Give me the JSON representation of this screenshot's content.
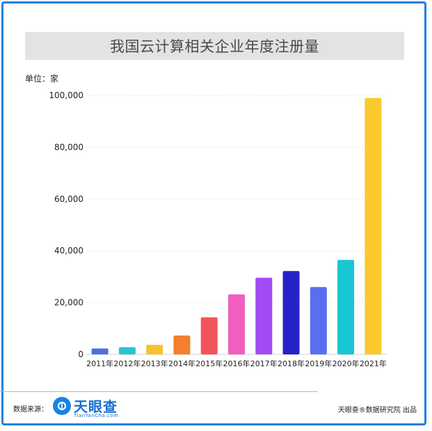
{
  "colors": {
    "frame": "#1a82e0",
    "title_bg": "#e3e3e3",
    "bars": [
      "#4c6fe0",
      "#29c3d6",
      "#f7c22e",
      "#f2802c",
      "#f2545b",
      "#f05fc0",
      "#a04cf2",
      "#2622c8",
      "#5a6ef0",
      "#18c6d1",
      "#fbc92e"
    ]
  },
  "unit_label": "单位：家",
  "footer": {
    "source_label": "数据来源：",
    "logo_name": "天眼查",
    "logo_sub": "TianYanCha.com",
    "credit": "天眼查®数据研究院 出品"
  },
  "chart_data": {
    "type": "bar",
    "title": "我国云计算相关企业年度注册量",
    "categories": [
      "2011年",
      "2012年",
      "2013年",
      "2014年",
      "2015年",
      "2016年",
      "2017年",
      "2018年",
      "2019年",
      "2020年",
      "2021年"
    ],
    "values": [
      2300,
      2800,
      3700,
      7300,
      14300,
      23200,
      29600,
      32200,
      26000,
      36500,
      99000
    ],
    "ylim": [
      0,
      100000
    ],
    "yticks": [
      0,
      20000,
      40000,
      60000,
      80000,
      100000
    ],
    "ytick_labels": [
      "0",
      "20,000",
      "40,000",
      "60,000",
      "80,000",
      "100,000"
    ],
    "xlabel": "",
    "ylabel": "",
    "grid": true,
    "legend": "none"
  }
}
